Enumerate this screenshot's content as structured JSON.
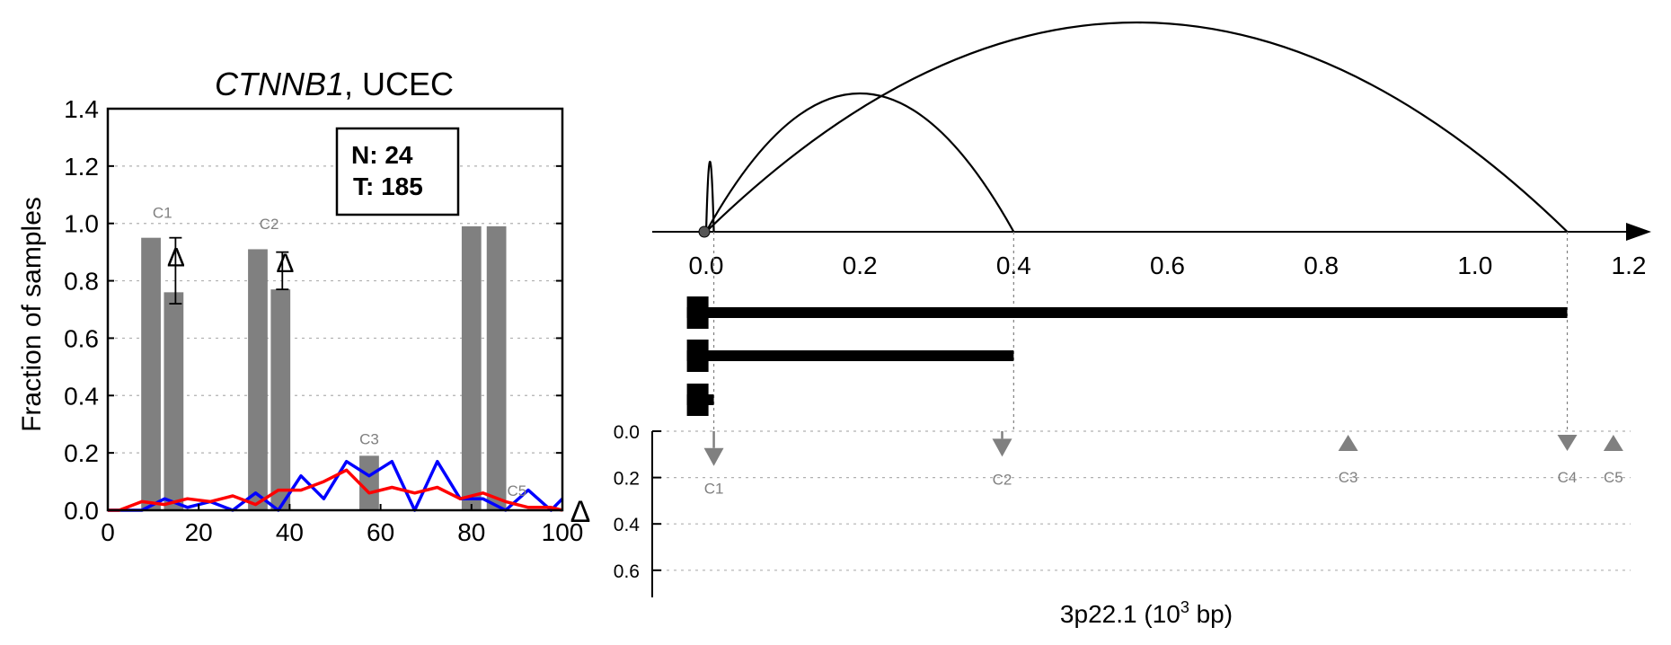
{
  "colors": {
    "bars": "#808080",
    "normal_line": "#0000ff",
    "tumor_line": "#ff0000",
    "markers": "#808080",
    "arcs": "#000000"
  },
  "chart_data": [
    {
      "type": "bar",
      "title_gene": "CTNNB1",
      "title_rest": ", UCEC",
      "ylabel": "Fraction of samples",
      "xlabel": "",
      "xlim": [
        0,
        100
      ],
      "ylim": [
        0,
        1.4
      ],
      "x_ticks": [
        0,
        20,
        40,
        60,
        80,
        100
      ],
      "y_ticks": [
        0.0,
        0.2,
        0.4,
        0.6,
        0.8,
        1.0,
        1.2,
        1.4
      ],
      "grid": "horizontal dotted",
      "counts": {
        "normal": "N: 24",
        "tumor": "T: 185"
      },
      "bars": [
        {
          "x": 9.5,
          "value": 0.95
        },
        {
          "x": 14.5,
          "value": 0.76,
          "error": [
            0.72,
            0.95
          ]
        },
        {
          "x": 33.0,
          "value": 0.91
        },
        {
          "x": 38.0,
          "value": 0.77,
          "error": [
            0.77,
            0.9
          ]
        },
        {
          "x": 57.5,
          "value": 0.19
        },
        {
          "x": 80.0,
          "value": 0.99
        },
        {
          "x": 85.5,
          "value": 0.99
        }
      ],
      "cluster_labels": [
        {
          "text": "C1",
          "x": 12.0,
          "y": 1.02
        },
        {
          "text": "C2",
          "x": 35.5,
          "y": 0.98
        },
        {
          "text": "C3",
          "x": 57.5,
          "y": 0.23
        },
        {
          "text": "C5",
          "x": 90.0,
          "y": 0.05
        }
      ],
      "delta_markers": [
        {
          "x": 15,
          "y": 0.85
        },
        {
          "x": 39,
          "y": 0.83
        }
      ],
      "delta_axis_symbol": "Δ",
      "series": [
        {
          "color": "#0000ff",
          "x": [
            0,
            2.5,
            7.5,
            12.5,
            17.5,
            22.5,
            27.5,
            32.5,
            37.5,
            42.5,
            47.5,
            52.5,
            57.5,
            62.5,
            67.5,
            72.5,
            77.5,
            82.5,
            87.5,
            92.5,
            97.5,
            100
          ],
          "y": [
            0,
            0,
            0,
            0.04,
            0.01,
            0.03,
            0,
            0.06,
            0,
            0.12,
            0.04,
            0.17,
            0.12,
            0.17,
            0,
            0.17,
            0.04,
            0.04,
            0,
            0.07,
            0,
            0.04
          ]
        },
        {
          "color": "#ff0000",
          "x": [
            0,
            2.5,
            7.5,
            12.5,
            17.5,
            22.5,
            27.5,
            32.5,
            37.5,
            42.5,
            47.5,
            52.5,
            57.5,
            62.5,
            67.5,
            72.5,
            77.5,
            82.5,
            87.5,
            92.5,
            97.5,
            100
          ],
          "y": [
            0,
            0,
            0.03,
            0.02,
            0.04,
            0.03,
            0.05,
            0.02,
            0.07,
            0.07,
            0.1,
            0.14,
            0.06,
            0.08,
            0.06,
            0.08,
            0.04,
            0.06,
            0.03,
            0.01,
            0.01,
            0
          ]
        }
      ]
    },
    {
      "type": "arc-diagram",
      "xlabel_main": "3p22.1 (10",
      "xlabel_sup": "3",
      "xlabel_end": " bp)",
      "xlim": [
        -0.08,
        1.2
      ],
      "x_ticks": [
        "0.0",
        "0.2",
        "0.4",
        "0.6",
        "0.8",
        "1.0",
        "1.2"
      ],
      "x_tick_values": [
        0.0,
        0.2,
        0.4,
        0.6,
        0.8,
        1.0,
        1.2
      ],
      "origin_point": 0.0,
      "arcs": [
        {
          "start": 0.0,
          "end": 0.01,
          "height": 0.55
        },
        {
          "start": 0.0,
          "end": 0.4,
          "height": 1.1
        },
        {
          "start": 0.0,
          "end": 1.12,
          "height": 1.6
        }
      ],
      "transcripts": [
        {
          "start": -0.025,
          "end": 1.12
        },
        {
          "start": -0.025,
          "end": 0.4
        },
        {
          "start": -0.025,
          "end": 0.01
        }
      ],
      "guides": [
        0.01,
        0.4,
        1.12
      ],
      "delta_ylim": [
        0,
        0.7
      ],
      "delta_y_ticks": [
        "0.0",
        "0.2",
        "0.4",
        "0.6"
      ],
      "delta_y_tick_values": [
        0.0,
        0.2,
        0.4,
        0.6
      ],
      "markers": [
        {
          "label": "C1",
          "x": 0.01,
          "value": 0.15,
          "direction": "down",
          "stem": true
        },
        {
          "label": "C2",
          "x": 0.385,
          "value": 0.11,
          "direction": "down",
          "stem": true
        },
        {
          "label": "C3",
          "x": 0.835,
          "value": 0.04,
          "direction": "up",
          "stem": false
        },
        {
          "label": "C4",
          "x": 1.12,
          "value": 0.04,
          "direction": "down",
          "stem": false
        },
        {
          "label": "C5",
          "x": 1.18,
          "value": 0.04,
          "direction": "up",
          "stem": false
        }
      ]
    }
  ]
}
